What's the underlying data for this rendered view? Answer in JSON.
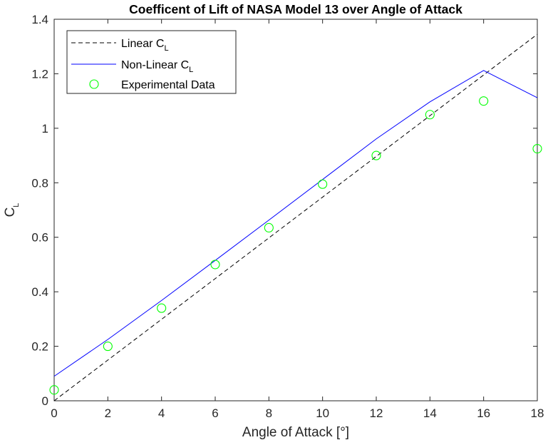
{
  "chart_data": {
    "type": "line",
    "title": "Coefficent of Lift of NASA Model 13 over Angle of Attack",
    "xlabel": "Angle of Attack [°]",
    "ylabel": {
      "main": "C",
      "sub": "L"
    },
    "xlim": [
      0,
      18
    ],
    "ylim": [
      0,
      1.4
    ],
    "xticks": [
      0,
      2,
      4,
      6,
      8,
      10,
      12,
      14,
      16,
      18
    ],
    "yticks": [
      0,
      0.2,
      0.4,
      0.6,
      0.8,
      1,
      1.2,
      1.4
    ],
    "xtick_labels": [
      "0",
      "2",
      "4",
      "6",
      "8",
      "10",
      "12",
      "14",
      "16",
      "18"
    ],
    "ytick_labels": [
      "0",
      "0.2",
      "0.4",
      "0.6",
      "0.8",
      "1",
      "1.2",
      "1.4"
    ],
    "grid": false,
    "legend_position": "top-left",
    "series": [
      {
        "name": "Linear C",
        "name_sub": "L",
        "style": "dashed-line",
        "color": "#000000",
        "x": [
          0,
          18
        ],
        "y": [
          0,
          1.345
        ]
      },
      {
        "name": "Non-Linear C",
        "name_sub": "L",
        "style": "solid-line",
        "color": "#0000ff",
        "x": [
          0,
          2,
          4,
          6,
          8,
          10,
          12,
          14,
          16,
          18
        ],
        "y": [
          0.09,
          0.225,
          0.368,
          0.515,
          0.663,
          0.812,
          0.961,
          1.097,
          1.212,
          1.112
        ]
      },
      {
        "name": "Experimental Data",
        "style": "circle-markers",
        "color": "#00ff00",
        "x": [
          0,
          2,
          4,
          6,
          8,
          10,
          12,
          14,
          16,
          18
        ],
        "y": [
          0.04,
          0.2,
          0.34,
          0.5,
          0.635,
          0.795,
          0.9,
          1.05,
          1.1,
          0.925
        ]
      }
    ]
  }
}
